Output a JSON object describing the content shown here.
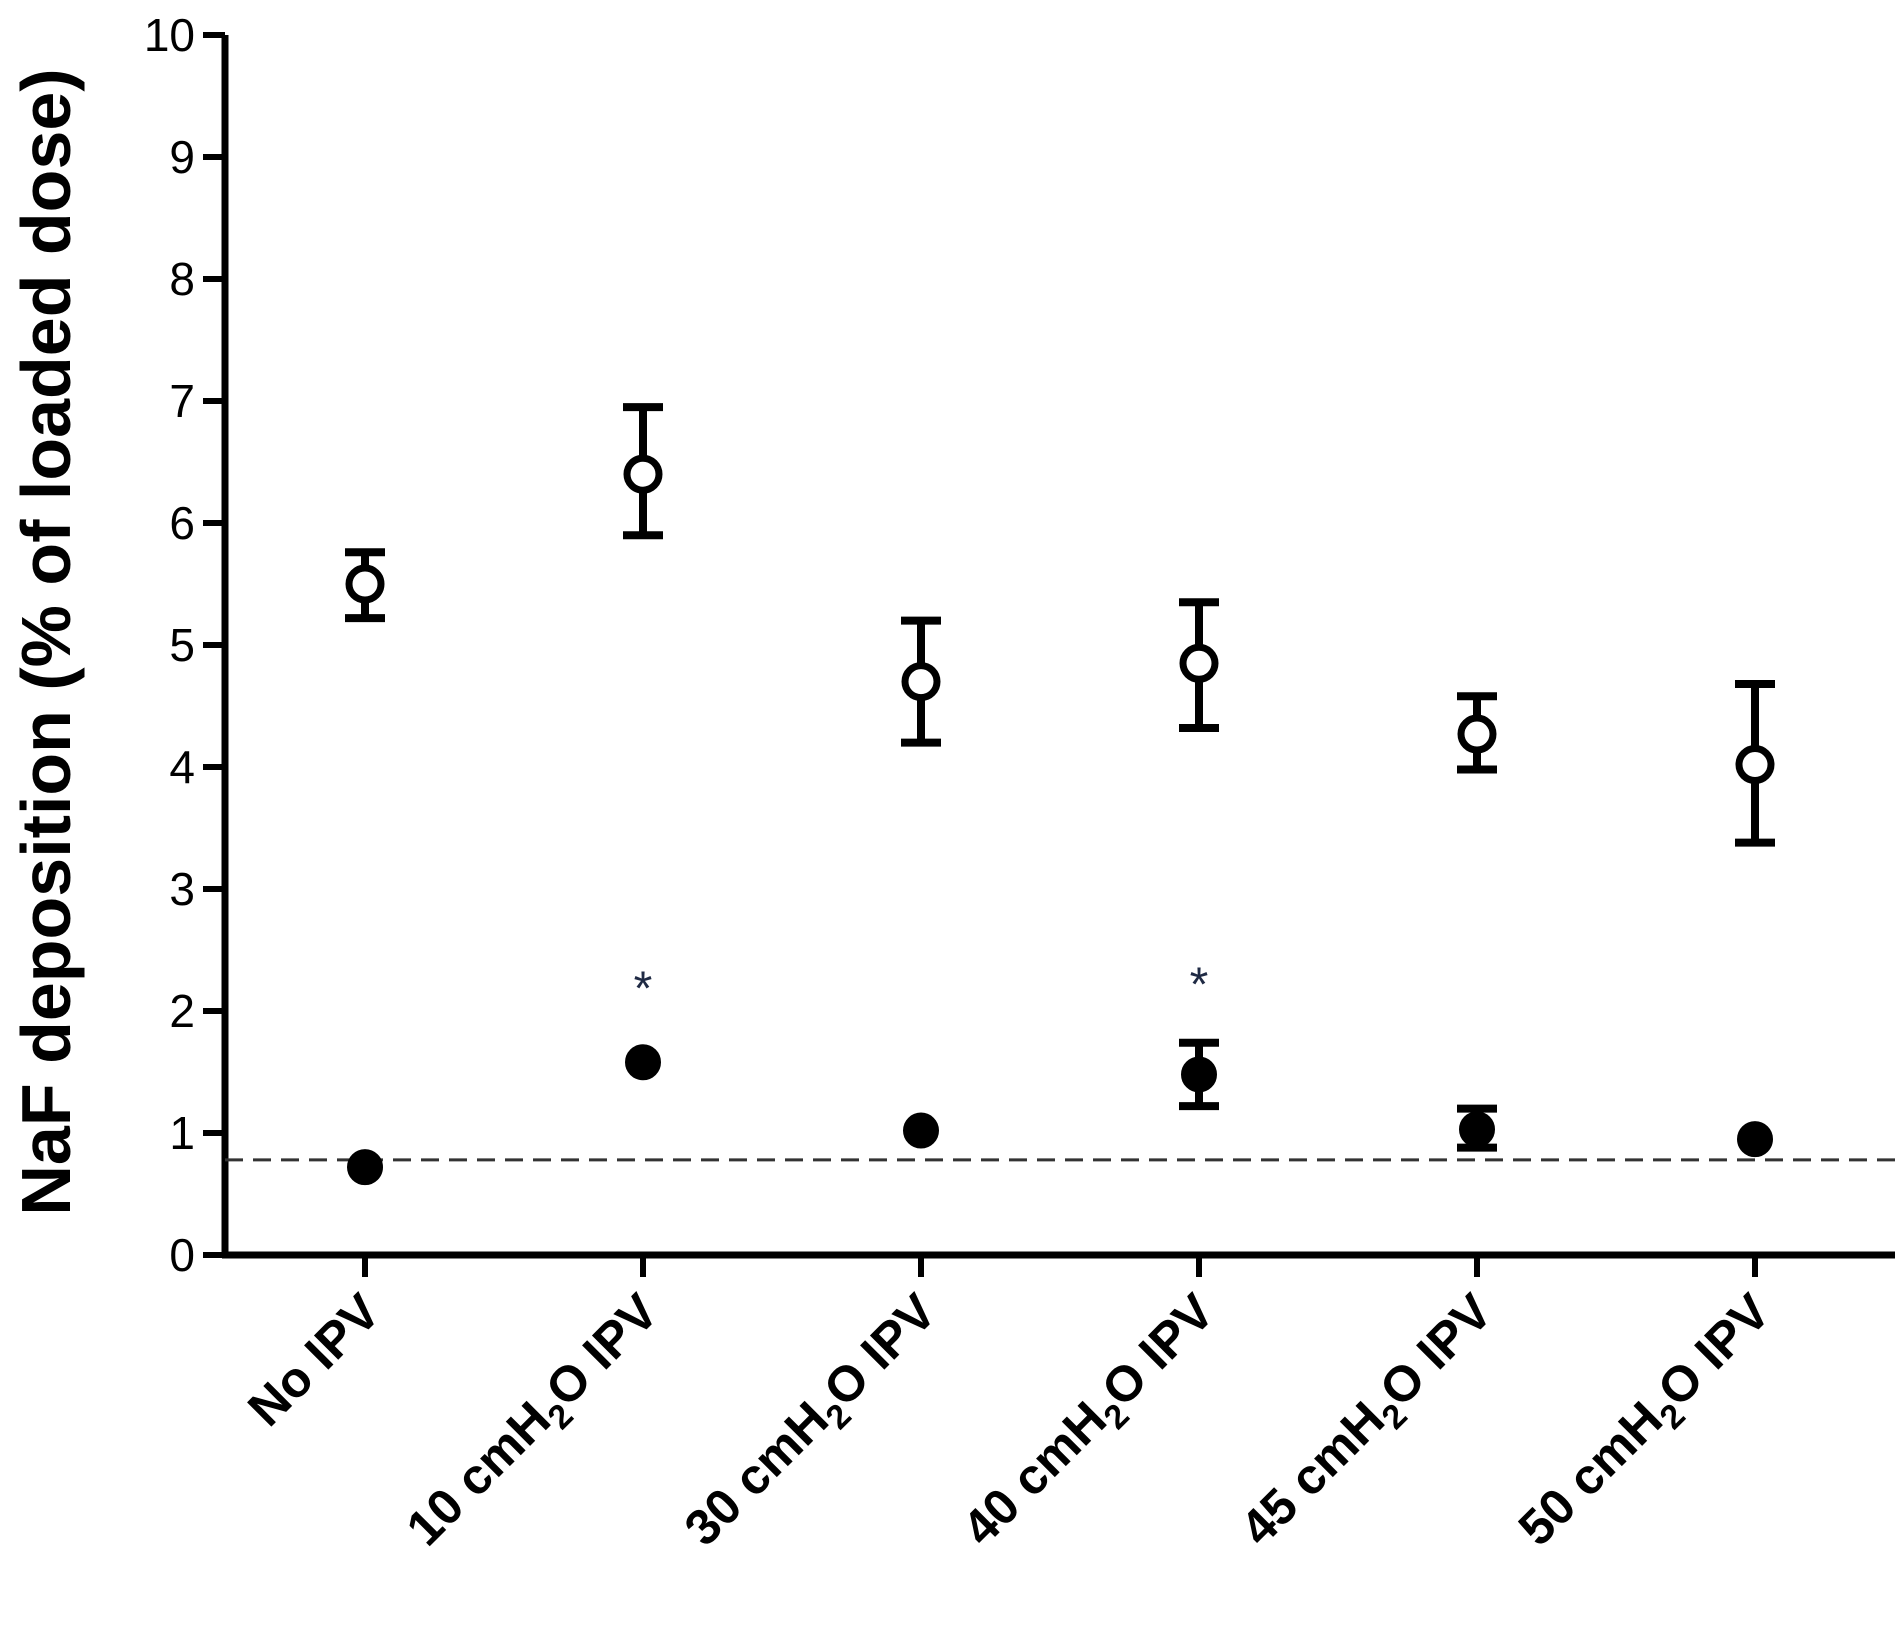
{
  "chart_data": {
    "type": "scatter",
    "title": "",
    "ylabel": "NaF deposition (% of loaded dose)",
    "xlabel": "",
    "ylim": [
      0,
      10
    ],
    "yticks": [
      "0",
      "1",
      "2",
      "3",
      "4",
      "5",
      "6",
      "7",
      "8",
      "9",
      "10"
    ],
    "categories": [
      {
        "pre": "No IPV",
        "sub": "",
        "post": ""
      },
      {
        "pre": "10 cmH",
        "sub": "2",
        "post": "O IPV"
      },
      {
        "pre": "30 cmH",
        "sub": "2",
        "post": "O IPV"
      },
      {
        "pre": "40 cmH",
        "sub": "2",
        "post": "O IPV"
      },
      {
        "pre": "45 cmH",
        "sub": "2",
        "post": "O IPV"
      },
      {
        "pre": "50 cmH",
        "sub": "2",
        "post": "O IPV"
      }
    ],
    "series": [
      {
        "marker": "open-circle",
        "values": [
          5.5,
          6.4,
          4.7,
          4.85,
          4.27,
          4.02
        ],
        "err_low": [
          5.22,
          5.9,
          4.2,
          4.32,
          3.98,
          3.38
        ],
        "err_high": [
          5.76,
          6.95,
          5.2,
          5.35,
          4.58,
          4.68
        ]
      },
      {
        "marker": "filled-circle",
        "values": [
          0.72,
          1.58,
          1.02,
          1.48,
          1.03,
          0.95
        ],
        "err_low": [
          0.72,
          1.58,
          1.02,
          1.22,
          0.88,
          0.95
        ],
        "err_high": [
          0.72,
          1.58,
          1.02,
          1.74,
          1.2,
          0.95
        ]
      }
    ],
    "reference_line": {
      "value": 0.78,
      "style": "dashed"
    },
    "annotations": [
      {
        "text": "*",
        "category_index": 1,
        "y": 2.3
      },
      {
        "text": "*",
        "category_index": 3,
        "y": 2.33
      }
    ],
    "grid": false,
    "legend": "none"
  }
}
